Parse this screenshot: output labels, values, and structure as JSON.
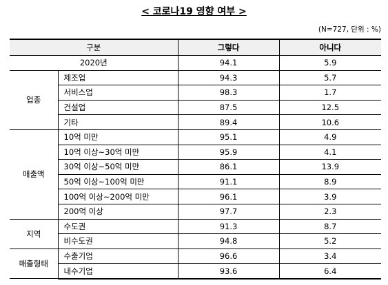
{
  "title": "< 코로나19 영향 여부 >",
  "note": "(N=727, 단위 : %)",
  "table": {
    "header": [
      "구분",
      "그렇다",
      "아니다"
    ],
    "total": {
      "label": "2020년",
      "values": [
        94.1,
        5.9
      ]
    },
    "groups": [
      {
        "name": "업종",
        "rows": [
          {
            "label": "제조업",
            "values": [
              94.3,
              5.7
            ]
          },
          {
            "label": "서비스업",
            "values": [
              98.3,
              1.7
            ]
          },
          {
            "label": "건설업",
            "values": [
              87.5,
              12.5
            ]
          },
          {
            "label": "기타",
            "values": [
              89.4,
              10.6
            ]
          }
        ]
      },
      {
        "name": "매출액",
        "rows": [
          {
            "label": "10억 미만",
            "values": [
              95.1,
              4.9
            ]
          },
          {
            "label": "10억 이상~30억 미만",
            "values": [
              95.9,
              4.1
            ]
          },
          {
            "label": "30억 이상~50억 미만",
            "values": [
              86.1,
              13.9
            ]
          },
          {
            "label": "50억 이상~100억 미만",
            "values": [
              91.1,
              8.9
            ]
          },
          {
            "label": "100억 이상~200억 미만",
            "values": [
              96.1,
              3.9
            ]
          },
          {
            "label": "200억 이상",
            "values": [
              97.7,
              2.3
            ]
          }
        ]
      },
      {
        "name": "지역",
        "rows": [
          {
            "label": "수도권",
            "values": [
              91.3,
              8.7
            ]
          },
          {
            "label": "비수도권",
            "values": [
              94.8,
              5.2
            ]
          }
        ]
      },
      {
        "name": "매출형태",
        "rows": [
          {
            "label": "수출기업",
            "values": [
              96.6,
              3.4
            ]
          },
          {
            "label": "내수기업",
            "values": [
              93.6,
              6.4
            ]
          }
        ]
      }
    ]
  }
}
